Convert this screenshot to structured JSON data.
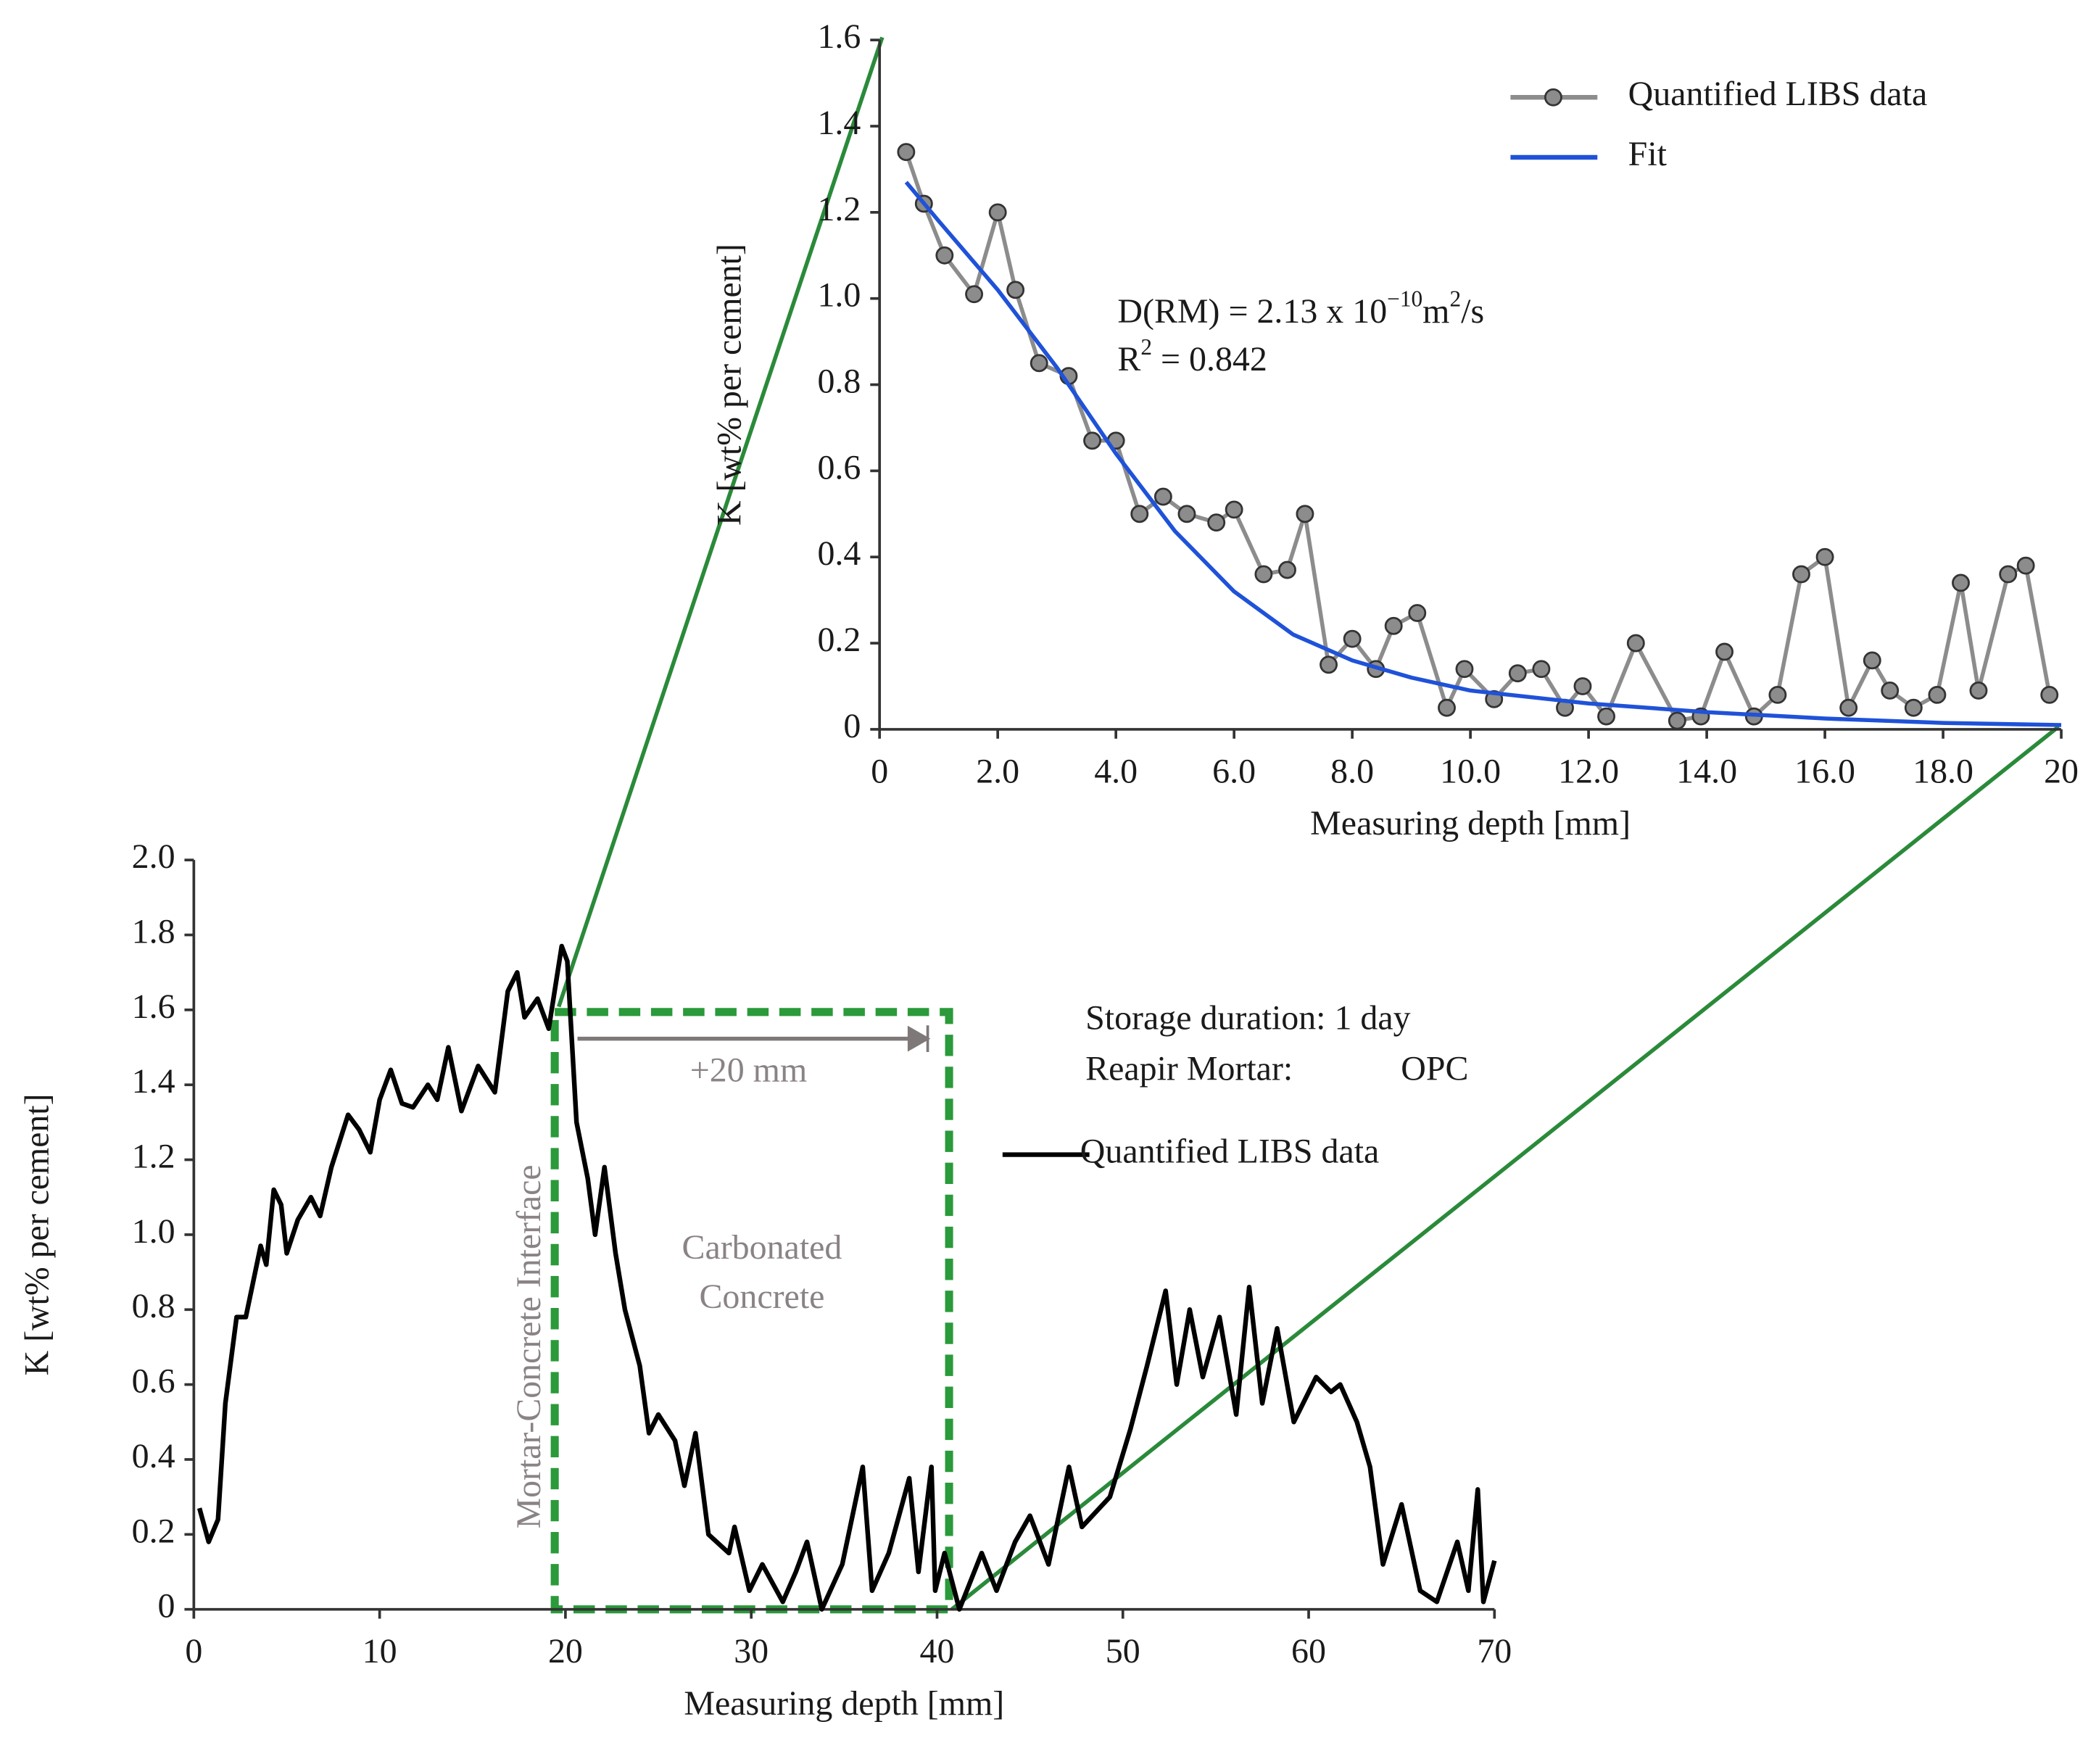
{
  "chart_data": [
    {
      "type": "line",
      "xlabel": "Measuring depth [mm]",
      "ylabel": "K [wt% per cement]",
      "xlim": [
        0,
        70
      ],
      "xticks": [
        0,
        10,
        20,
        30,
        40,
        50,
        60,
        70
      ],
      "ylim": [
        0,
        2.0
      ],
      "yticks": [
        0,
        0.2,
        0.4,
        0.6,
        0.8,
        {
          "value": 1,
          "label": "1.0"
        },
        1.2,
        1.4,
        1.6,
        1.8,
        {
          "value": 2,
          "label": "2.0"
        }
      ],
      "series": [
        {
          "name": "Quantified LIBS data",
          "color": "#000000",
          "x": [
            0.3,
            0.8,
            1.3,
            1.7,
            2.3,
            2.8,
            3.6,
            3.9,
            4.3,
            4.7,
            5.0,
            5.6,
            6.3,
            6.8,
            7.4,
            8.3,
            8.9,
            9.5,
            10.0,
            10.6,
            11.2,
            11.8,
            12.6,
            13.1,
            13.7,
            14.4,
            15.3,
            16.2,
            16.9,
            17.4,
            17.8,
            18.5,
            19.1,
            19.8,
            20.1,
            20.6,
            21.2,
            21.6,
            22.1,
            22.7,
            23.2,
            24.0,
            24.5,
            25.0,
            25.9,
            26.4,
            27.0,
            27.7,
            28.8,
            29.1,
            29.9,
            30.6,
            31.7,
            32.4,
            33.0,
            33.8,
            34.9,
            36.0,
            36.5,
            37.4,
            38.5,
            39.0,
            39.7,
            39.9,
            40.4,
            41.2,
            42.4,
            43.2,
            44.2,
            45.0,
            46.0,
            47.1,
            47.8,
            49.3,
            50.4,
            51.3,
            52.3,
            52.9,
            53.6,
            54.3,
            55.2,
            56.1,
            56.8,
            57.5,
            58.3,
            59.2,
            60.4,
            61.2,
            61.7,
            62.6,
            63.3,
            64.0,
            65.0,
            66.0,
            66.9,
            68.0,
            68.6,
            69.1,
            69.4,
            70.0
          ],
          "values": [
            0.27,
            0.18,
            0.24,
            0.55,
            0.78,
            0.78,
            0.97,
            0.92,
            1.12,
            1.08,
            0.95,
            1.04,
            1.1,
            1.05,
            1.18,
            1.32,
            1.28,
            1.22,
            1.36,
            1.44,
            1.35,
            1.34,
            1.4,
            1.36,
            1.5,
            1.33,
            1.45,
            1.38,
            1.65,
            1.7,
            1.58,
            1.63,
            1.55,
            1.77,
            1.73,
            1.3,
            1.15,
            1.0,
            1.18,
            0.95,
            0.8,
            0.65,
            0.47,
            0.52,
            0.45,
            0.33,
            0.47,
            0.2,
            0.15,
            0.22,
            0.05,
            0.12,
            0.02,
            0.1,
            0.18,
            0.0,
            0.12,
            0.38,
            0.05,
            0.15,
            0.35,
            0.1,
            0.38,
            0.05,
            0.15,
            0.0,
            0.15,
            0.05,
            0.18,
            0.25,
            0.12,
            0.38,
            0.22,
            0.3,
            0.48,
            0.65,
            0.85,
            0.6,
            0.8,
            0.62,
            0.78,
            0.52,
            0.86,
            0.55,
            0.75,
            0.5,
            0.62,
            0.58,
            0.6,
            0.5,
            0.38,
            0.12,
            0.28,
            0.05,
            0.02,
            0.18,
            0.05,
            0.32,
            0.02,
            0.13
          ]
        }
      ],
      "annotations": [
        "Storage duration: 1 day",
        "Reapir Mortar:",
        "OPC",
        "+20 mm",
        "Carbonated",
        "Concrete",
        "Mortar-Concrete Interface"
      ]
    },
    {
      "type": "scatter-fit",
      "xlabel": "Measuring depth [mm]",
      "ylabel": "K [wt% per cement]",
      "xlim": [
        0,
        20
      ],
      "xticks": [
        0,
        {
          "value": 2,
          "label": "2.0"
        },
        {
          "value": 4,
          "label": "4.0"
        },
        {
          "value": 6,
          "label": "6.0"
        },
        {
          "value": 8,
          "label": "8.0"
        },
        {
          "value": 10,
          "label": "10.0"
        },
        {
          "value": 12,
          "label": "12.0"
        },
        {
          "value": 14,
          "label": "14.0"
        },
        {
          "value": 16,
          "label": "16.0"
        },
        {
          "value": 18,
          "label": "18.0"
        },
        20
      ],
      "ylim": [
        0,
        1.6
      ],
      "yticks": [
        0,
        0.2,
        0.4,
        0.6,
        0.8,
        {
          "value": 1,
          "label": "1.0"
        },
        1.2,
        1.4,
        1.6
      ],
      "series": [
        {
          "name": "Quantified LIBS data",
          "color": "#8c8c8c",
          "marker": true,
          "x": [
            0.45,
            0.75,
            1.1,
            1.6,
            2.0,
            2.3,
            2.7,
            3.2,
            3.6,
            4.0,
            4.4,
            4.8,
            5.2,
            5.7,
            6.0,
            6.5,
            6.9,
            7.2,
            7.6,
            8.0,
            8.4,
            8.7,
            9.1,
            9.6,
            9.9,
            10.4,
            10.8,
            11.2,
            11.6,
            11.9,
            12.3,
            12.8,
            13.5,
            13.9,
            14.3,
            14.8,
            15.2,
            15.6,
            16.0,
            16.4,
            16.8,
            17.1,
            17.5,
            17.9,
            18.3,
            18.6,
            19.1,
            19.4,
            19.8
          ],
          "values": [
            1.34,
            1.22,
            1.1,
            1.01,
            1.2,
            1.02,
            0.85,
            0.82,
            0.67,
            0.67,
            0.5,
            0.54,
            0.5,
            0.48,
            0.51,
            0.36,
            0.37,
            0.5,
            0.15,
            0.21,
            0.14,
            0.24,
            0.27,
            0.05,
            0.14,
            0.07,
            0.13,
            0.14,
            0.05,
            0.1,
            0.03,
            0.2,
            0.02,
            0.03,
            0.18,
            0.03,
            0.08,
            0.36,
            0.4,
            0.05,
            0.16,
            0.09,
            0.05,
            0.08,
            0.34,
            0.09,
            0.36,
            0.38,
            0.08
          ]
        },
        {
          "name": "Fit",
          "color": "#1f52d8",
          "marker": false,
          "x": [
            0.45,
            1,
            2,
            3,
            4,
            5,
            6,
            7,
            8,
            9,
            10,
            12,
            14,
            16,
            18,
            20
          ],
          "values": [
            1.27,
            1.18,
            1.02,
            0.84,
            0.64,
            0.46,
            0.32,
            0.22,
            0.16,
            0.12,
            0.09,
            0.06,
            0.04,
            0.025,
            0.015,
            0.01
          ]
        }
      ],
      "equation": {
        "base": "D(RM) = 2.13 x 10",
        "exp": "−10",
        "unit": "m",
        "unit_exp": "2",
        "tail": "/s"
      },
      "r_squared": {
        "base": "R",
        "exp": "2",
        "tail": " = 0.842"
      }
    }
  ]
}
